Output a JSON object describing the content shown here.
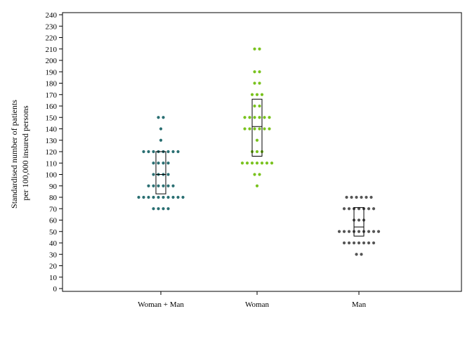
{
  "chart_data": {
    "type": "scatter",
    "subtype": "dot-plot with box",
    "title": "",
    "xlabel": "",
    "ylabel": [
      "Standardised number of patients",
      "per 100,000 insured persons"
    ],
    "ylim": [
      0,
      240
    ],
    "yticks": [
      0,
      10,
      20,
      30,
      40,
      50,
      60,
      70,
      80,
      90,
      100,
      110,
      120,
      130,
      140,
      150,
      160,
      170,
      180,
      190,
      200,
      210,
      220,
      230,
      240
    ],
    "grid": false,
    "legend": "none",
    "categories": [
      "Woman + Man",
      "Woman",
      "Man"
    ],
    "series": [
      {
        "category": "Woman + Man",
        "color": "#2a6f72",
        "values": [
          150,
          150,
          140,
          130,
          120,
          120,
          120,
          120,
          120,
          120,
          120,
          120,
          110,
          110,
          110,
          110,
          100,
          100,
          100,
          100,
          90,
          90,
          90,
          90,
          90,
          90,
          80,
          80,
          80,
          80,
          80,
          80,
          80,
          80,
          80,
          80,
          70,
          70,
          70,
          70
        ],
        "box": {
          "low": 83,
          "mid": 100,
          "high": 120
        }
      },
      {
        "category": "Woman",
        "color": "#79c21e",
        "values": [
          210,
          210,
          190,
          190,
          180,
          180,
          170,
          170,
          170,
          160,
          160,
          150,
          150,
          150,
          150,
          150,
          150,
          140,
          140,
          140,
          140,
          140,
          140,
          130,
          120,
          120,
          120,
          110,
          110,
          110,
          110,
          110,
          110,
          110,
          100,
          100,
          90
        ],
        "box": {
          "low": 116,
          "mid": 142,
          "high": 166
        }
      },
      {
        "category": "Man",
        "color": "#555555",
        "values": [
          80,
          80,
          80,
          80,
          80,
          80,
          70,
          70,
          70,
          70,
          70,
          70,
          70,
          60,
          60,
          60,
          50,
          50,
          50,
          50,
          50,
          50,
          50,
          50,
          50,
          40,
          40,
          40,
          40,
          40,
          40,
          40,
          30,
          30
        ],
        "box": {
          "low": 46,
          "mid": 54,
          "high": 71
        }
      }
    ]
  }
}
